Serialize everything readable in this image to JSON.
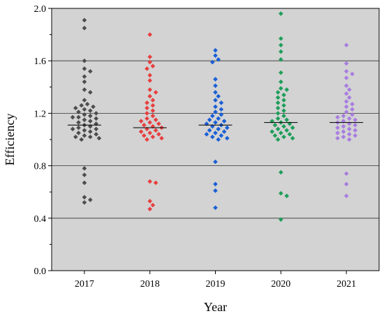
{
  "chart_data": {
    "type": "scatter",
    "xlabel": "Year",
    "ylabel": "Efficiency",
    "categories": [
      "2017",
      "2018",
      "2019",
      "2020",
      "2021"
    ],
    "ylim": [
      0.0,
      2.0
    ],
    "yticks": [
      0.0,
      0.4,
      0.8,
      1.2,
      1.6,
      2.0
    ],
    "ytick_labels": [
      "0.0",
      "0.4",
      "0.8",
      "1.2",
      "1.6",
      "2.0"
    ],
    "grid": "horizontal",
    "background_color": "#d3d3d3",
    "series": [
      {
        "category": "2017",
        "color": "#4d4d4d",
        "mean": 1.11,
        "values": [
          1.91,
          1.85,
          1.6,
          1.54,
          1.52,
          1.48,
          1.44,
          1.38,
          1.36,
          1.3,
          1.27,
          1.26,
          1.25,
          1.24,
          1.23,
          1.22,
          1.21,
          1.2,
          1.19,
          1.18,
          1.17,
          1.17,
          1.16,
          1.15,
          1.14,
          1.13,
          1.12,
          1.11,
          1.1,
          1.09,
          1.08,
          1.08,
          1.07,
          1.06,
          1.05,
          1.04,
          1.03,
          1.02,
          1.02,
          1.01,
          1.0,
          0.78,
          0.73,
          0.67,
          0.56,
          0.54,
          0.52
        ]
      },
      {
        "category": "2018",
        "color": "#e83f3f",
        "mean": 1.09,
        "values": [
          1.8,
          1.63,
          1.59,
          1.56,
          1.54,
          1.49,
          1.45,
          1.38,
          1.36,
          1.33,
          1.3,
          1.28,
          1.26,
          1.24,
          1.22,
          1.2,
          1.18,
          1.16,
          1.15,
          1.14,
          1.13,
          1.12,
          1.11,
          1.1,
          1.09,
          1.08,
          1.07,
          1.06,
          1.05,
          1.04,
          1.03,
          1.02,
          1.01,
          1.0,
          0.68,
          0.67,
          0.53,
          0.5,
          0.47
        ]
      },
      {
        "category": "2019",
        "color": "#1a5fd6",
        "mean": 1.11,
        "values": [
          1.68,
          1.64,
          1.61,
          1.59,
          1.46,
          1.41,
          1.36,
          1.33,
          1.3,
          1.28,
          1.25,
          1.23,
          1.21,
          1.19,
          1.18,
          1.16,
          1.15,
          1.14,
          1.13,
          1.12,
          1.11,
          1.1,
          1.09,
          1.08,
          1.07,
          1.06,
          1.05,
          1.04,
          1.03,
          1.02,
          1.01,
          1.0,
          0.83,
          0.66,
          0.61,
          0.48
        ]
      },
      {
        "category": "2020",
        "color": "#1e9e5a",
        "mean": 1.13,
        "values": [
          1.96,
          1.77,
          1.72,
          1.67,
          1.61,
          1.51,
          1.44,
          1.39,
          1.38,
          1.36,
          1.34,
          1.32,
          1.3,
          1.28,
          1.26,
          1.24,
          1.22,
          1.2,
          1.18,
          1.16,
          1.15,
          1.14,
          1.13,
          1.12,
          1.11,
          1.1,
          1.09,
          1.08,
          1.07,
          1.06,
          1.05,
          1.04,
          1.03,
          1.02,
          1.01,
          1.0,
          0.75,
          0.59,
          0.57,
          0.39
        ]
      },
      {
        "category": "2021",
        "color": "#a87de0",
        "mean": 1.13,
        "values": [
          1.72,
          1.58,
          1.52,
          1.5,
          1.47,
          1.41,
          1.38,
          1.35,
          1.32,
          1.29,
          1.27,
          1.25,
          1.23,
          1.21,
          1.19,
          1.18,
          1.17,
          1.16,
          1.15,
          1.14,
          1.13,
          1.12,
          1.11,
          1.1,
          1.09,
          1.08,
          1.07,
          1.06,
          1.05,
          1.04,
          1.03,
          1.02,
          1.01,
          1.0,
          0.74,
          0.66,
          0.57
        ]
      }
    ]
  }
}
